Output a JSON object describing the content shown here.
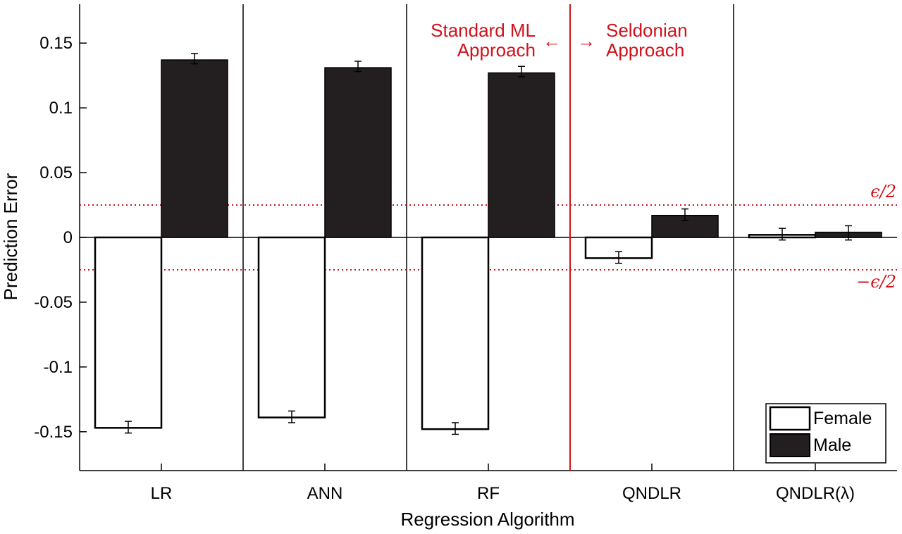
{
  "chart_data": {
    "type": "bar",
    "ylabel": "Prediction Error",
    "xlabel": "Regression Algorithm",
    "categories": [
      "LR",
      "ANN",
      "RF",
      "QNDLR",
      "QNDLR(λ)"
    ],
    "ylim": [
      -0.18,
      0.18
    ],
    "yticks": [
      0.15,
      0.1,
      0.05,
      0,
      -0.05,
      -0.1,
      -0.15
    ],
    "ytick_labels": [
      "0.15",
      "0.1",
      "0.05",
      "0",
      "-0.05",
      "-0.1",
      "-0.15"
    ],
    "series": [
      {
        "name": "Female",
        "fill": "#ffffff",
        "values": [
          -0.147,
          -0.139,
          -0.148,
          -0.016,
          0.002
        ],
        "error_low": [
          -0.151,
          -0.143,
          -0.152,
          -0.02,
          -0.002
        ],
        "error_high": [
          -0.142,
          -0.134,
          -0.143,
          -0.011,
          0.007
        ]
      },
      {
        "name": "Male",
        "fill": "#231f20",
        "values": [
          0.137,
          0.131,
          0.127,
          0.017,
          0.004
        ],
        "error_low": [
          0.134,
          0.128,
          0.124,
          0.013,
          -0.002
        ],
        "error_high": [
          0.142,
          0.136,
          0.132,
          0.022,
          0.009
        ]
      }
    ],
    "reference_lines": [
      {
        "value": 0.025,
        "label": "ϵ/2",
        "color": "#d0121b",
        "style": "dotted"
      },
      {
        "value": -0.025,
        "label": "−ϵ/2",
        "color": "#d0121b",
        "style": "dotted"
      }
    ],
    "annotations": {
      "left_lines": [
        "Standard ML",
        "Approach"
      ],
      "left_arrow": "←",
      "right_arrow": "→",
      "right_lines": [
        "Seldonian",
        "Approach"
      ],
      "color": "#d0121b"
    },
    "separator_color": "#d0121b",
    "legend": {
      "placement": "bottom-right",
      "entries": [
        "Female",
        "Male"
      ]
    },
    "grid": false
  }
}
